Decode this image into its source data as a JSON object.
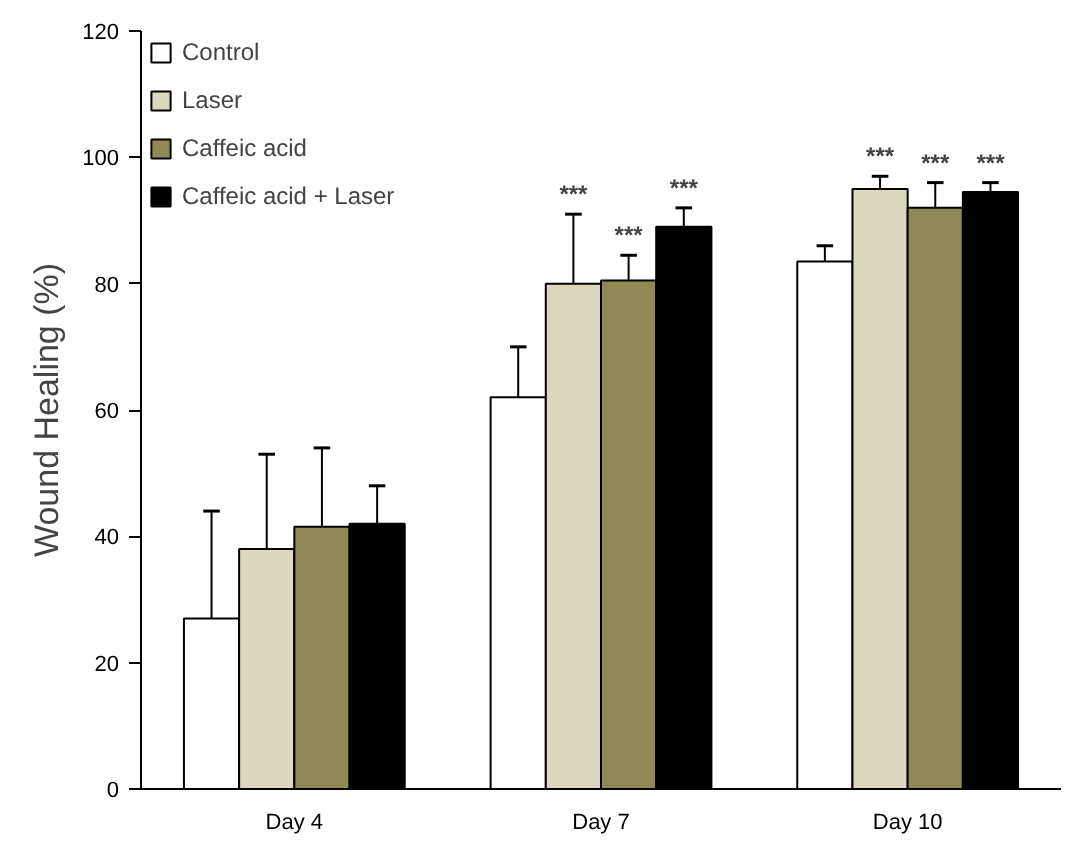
{
  "chart_data": {
    "type": "bar",
    "ylabel": "Wound Healing (%)",
    "categories": [
      "Day 4",
      "Day 7",
      "Day 10"
    ],
    "series": [
      {
        "name": "Control",
        "color": "#ffffff",
        "values": [
          27,
          62,
          83.5
        ],
        "errors": [
          [
            27,
            44
          ],
          [
            62,
            70
          ],
          [
            83.5,
            86
          ]
        ]
      },
      {
        "name": "Laser",
        "color": "#dcd8c0",
        "values": [
          38,
          80,
          95
        ],
        "errors": [
          [
            38,
            53
          ],
          [
            80,
            91
          ],
          [
            95,
            97
          ]
        ],
        "value_labels": [
          null,
          "***",
          "***"
        ]
      },
      {
        "name": "Caffeic acid",
        "color": "#8f8a55",
        "values": [
          41.5,
          80.5,
          92
        ],
        "errors": [
          [
            41.5,
            54
          ],
          [
            80.5,
            84.5
          ],
          [
            92,
            96
          ]
        ],
        "value_labels": [
          null,
          "***",
          "***"
        ]
      },
      {
        "name": "Caffeic acid + Laser",
        "color": "#000000",
        "values": [
          42,
          89,
          94.5
        ],
        "errors": [
          [
            42,
            48
          ],
          [
            89,
            92
          ],
          [
            94.5,
            96
          ]
        ],
        "value_labels": [
          null,
          "***",
          "***"
        ]
      }
    ],
    "ylim": [
      0,
      120
    ],
    "yticks": [
      0,
      20,
      40,
      60,
      80,
      100,
      120
    ],
    "grid": false,
    "legend": "top left"
  }
}
